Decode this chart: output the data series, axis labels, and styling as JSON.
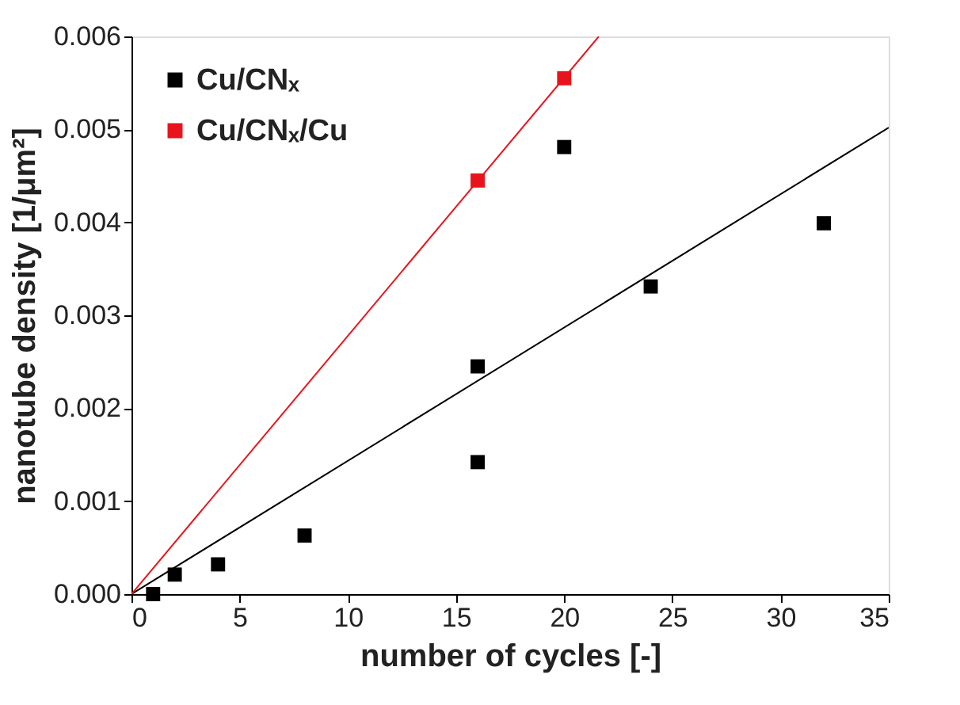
{
  "chart_data": {
    "type": "scatter",
    "xlabel": "number of cycles [-]",
    "ylabel": "nanotube density [1/μm²]",
    "xlim": [
      0,
      35
    ],
    "ylim": [
      0,
      0.006
    ],
    "xticks": [
      0,
      5,
      10,
      15,
      20,
      25,
      30,
      35
    ],
    "yticks": [
      {
        "value": 0,
        "label": "0.000"
      },
      {
        "value": 0.001,
        "label": "0.001"
      },
      {
        "value": 0.002,
        "label": "0.002"
      },
      {
        "value": 0.003,
        "label": "0.003"
      },
      {
        "value": 0.004,
        "label": "0.004"
      },
      {
        "value": 0.005,
        "label": "0.005"
      },
      {
        "value": 0.006,
        "label": "0.006"
      }
    ],
    "marker": "square",
    "grid": false,
    "legend": "top left",
    "series": [
      {
        "name": "Cu/CNₓ",
        "color": "#000000",
        "x": [
          1,
          2,
          4,
          8,
          16,
          16,
          20,
          24,
          32
        ],
        "values": [
          0,
          0.00021,
          0.00032,
          0.00063,
          0.00142,
          0.00245,
          0.00481,
          0.00331,
          0.00399
        ]
      },
      {
        "name": "Cu/CNₓ/Cu",
        "color": "#e8141c",
        "x": [
          16,
          20
        ],
        "values": [
          0.00445,
          0.00555
        ]
      },
      {
        "type": "line",
        "marker": "none",
        "line_style": "solid",
        "color": "#000000",
        "x": [
          0,
          35
        ],
        "values": [
          0,
          0.00502
        ]
      },
      {
        "type": "line",
        "marker": "none",
        "line_style": "solid",
        "color": "#e8141c",
        "x": [
          0,
          21.6
        ],
        "values": [
          0,
          0.006
        ]
      }
    ]
  }
}
